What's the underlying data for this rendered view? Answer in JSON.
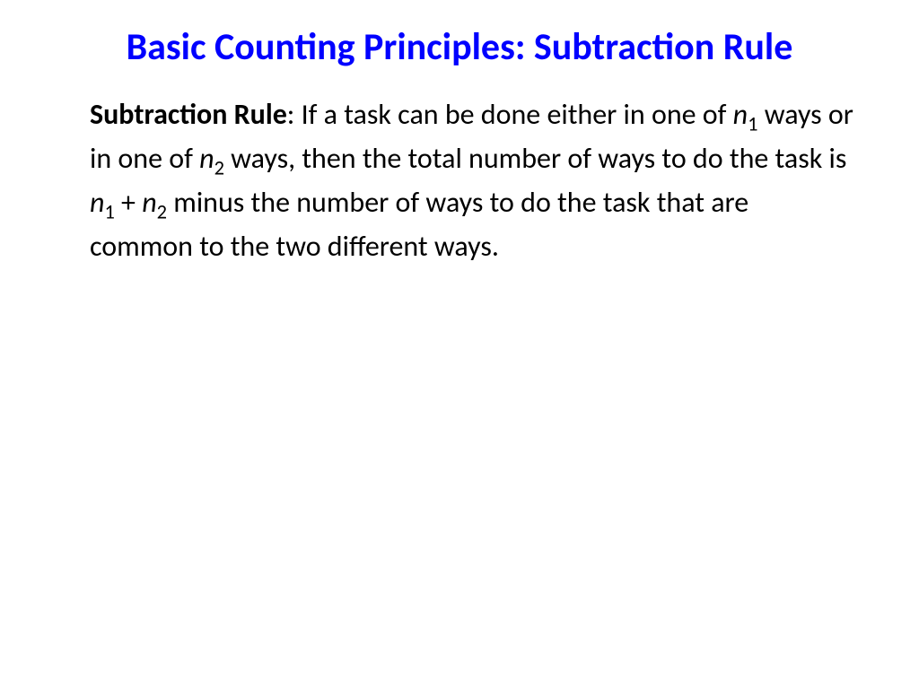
{
  "slide": {
    "title": "Basic Counting Principles: Subtraction Rule",
    "title_color": "#0000ff",
    "title_fontsize": 42,
    "body_color": "#000000",
    "body_fontsize": 32,
    "rule_label": "Subtraction Rule",
    "body_part1": ": If a task can be done either in one of ",
    "var1": "n",
    "sub1": "1",
    "body_part2": " ways or in one of  ",
    "var2": "n",
    "sub2": "2",
    "body_part3": " ways, then the total number of ways to do the task is  ",
    "var3": "n",
    "sub3": "1",
    "body_part4": " + ",
    "var4": "n",
    "sub4": "2",
    "body_part5": " minus the number of ways  to do the task that are common to the two different ways.",
    "background_color": "#ffffff"
  }
}
